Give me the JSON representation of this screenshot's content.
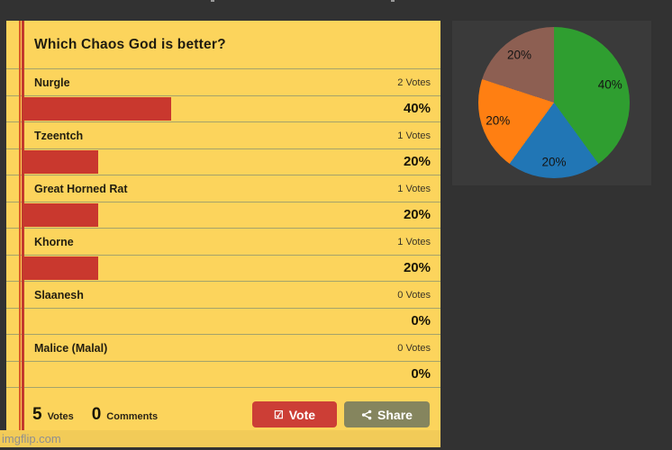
{
  "page": {
    "watermark": "imgflip.com"
  },
  "poll": {
    "title": "Which Chaos God is better?",
    "options": [
      {
        "label": "Nurgle",
        "votes_text": "2 Votes",
        "percent_text": "40%",
        "percent": 40
      },
      {
        "label": "Tzeentch",
        "votes_text": "1 Votes",
        "percent_text": "20%",
        "percent": 20
      },
      {
        "label": "Great Horned Rat",
        "votes_text": "1 Votes",
        "percent_text": "20%",
        "percent": 20
      },
      {
        "label": "Khorne",
        "votes_text": "1 Votes",
        "percent_text": "20%",
        "percent": 20
      },
      {
        "label": "Slaanesh",
        "votes_text": "0 Votes",
        "percent_text": "0%",
        "percent": 0
      },
      {
        "label": "Malice (Malal)",
        "votes_text": "0 Votes",
        "percent_text": "0%",
        "percent": 0
      }
    ],
    "footer": {
      "votes_count": "5",
      "votes_label": "Votes",
      "comments_count": "0",
      "comments_label": "Comments",
      "vote_button": "Vote",
      "vote_icon_glyph": "☑",
      "share_button": "Share"
    },
    "colors": {
      "card_bg": "#fcd45c",
      "bar_red": "#c9382e",
      "separator": "#a3a36b",
      "vote_button": "#cc3e36",
      "share_button": "#85855e",
      "margin_line_outer": "#d95b28",
      "margin_line_inner": "#c33a2d"
    }
  },
  "chart_data": {
    "type": "pie",
    "values": [
      40,
      20,
      20,
      20
    ],
    "slice_labels": [
      "40%",
      "20%",
      "20%",
      "20%"
    ],
    "colors": [
      "#2f9e30",
      "#2176b5",
      "#ff7f12",
      "#8d5f52"
    ],
    "start_angle": "top",
    "direction": "clockwise",
    "title": "",
    "legend": "none"
  }
}
